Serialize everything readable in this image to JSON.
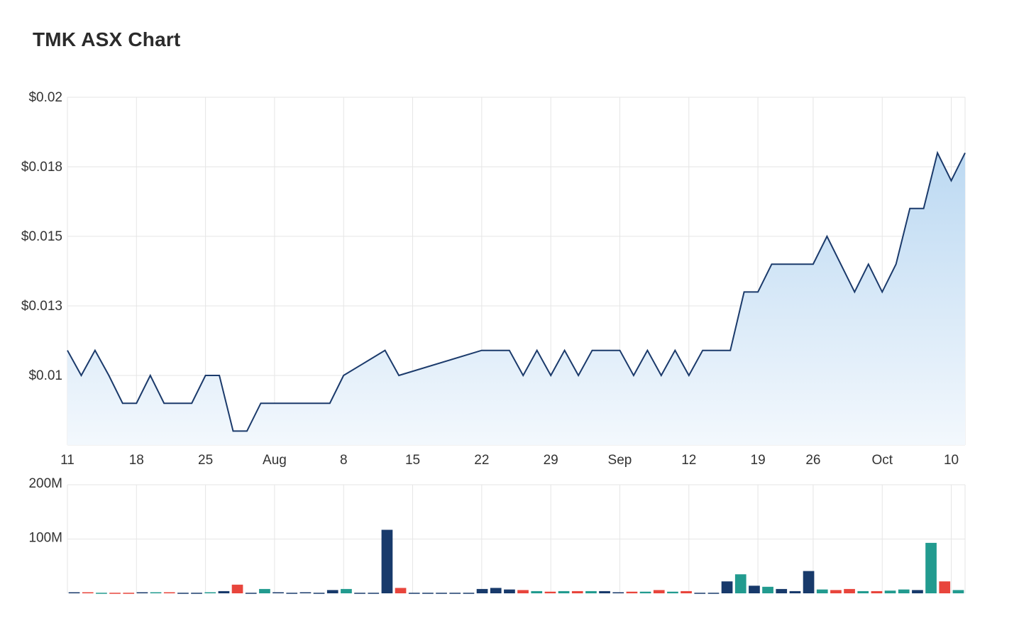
{
  "title": "TMK ASX Chart",
  "colors": {
    "line": "#1b3a6b",
    "area_top": "#bcd9f2",
    "area_bottom": "#f3f8fd",
    "vol_navy": "#183a6b",
    "vol_teal": "#229b8f",
    "vol_red": "#e8453c",
    "grid": "#e6e6e6"
  },
  "chart_data": [
    {
      "type": "area",
      "title": "TMK ASX Chart",
      "ylabel": "",
      "xlabel": "",
      "y_ticks": [
        "$0.02",
        "$0.018",
        "$0.015",
        "$0.013",
        "$0.01"
      ],
      "y_tick_values": [
        0.02,
        0.0175,
        0.015,
        0.0125,
        0.01
      ],
      "ylim": [
        0.0075,
        0.02
      ],
      "x_ticks": [
        "11",
        "18",
        "25",
        "Aug",
        "8",
        "15",
        "22",
        "29",
        "Sep",
        "12",
        "19",
        "26",
        "Oct",
        "10"
      ],
      "x_tick_days": [
        0,
        5,
        10,
        15,
        20,
        25,
        30,
        35,
        40,
        45,
        50,
        54,
        59,
        64
      ],
      "x_day_max": 65,
      "grid": true,
      "series": [
        {
          "points": [
            [
              0,
              0.0109
            ],
            [
              1,
              0.01
            ],
            [
              2,
              0.0109
            ],
            [
              3,
              0.01
            ],
            [
              4,
              0.009
            ],
            [
              5,
              0.009
            ],
            [
              6,
              0.01
            ],
            [
              7,
              0.009
            ],
            [
              8,
              0.009
            ],
            [
              9,
              0.009
            ],
            [
              10,
              0.01
            ],
            [
              11,
              0.01
            ],
            [
              12,
              0.008
            ],
            [
              13,
              0.008
            ],
            [
              14,
              0.009
            ],
            [
              15,
              0.009
            ],
            [
              16,
              0.009
            ],
            [
              17,
              0.009
            ],
            [
              18,
              0.009
            ],
            [
              19,
              0.009
            ],
            [
              20,
              0.01
            ],
            [
              23,
              0.0109
            ],
            [
              24,
              0.01
            ],
            [
              30,
              0.0109
            ],
            [
              31,
              0.0109
            ],
            [
              32,
              0.0109
            ],
            [
              33,
              0.01
            ],
            [
              34,
              0.0109
            ],
            [
              35,
              0.01
            ],
            [
              36,
              0.0109
            ],
            [
              37,
              0.01
            ],
            [
              38,
              0.0109
            ],
            [
              39,
              0.0109
            ],
            [
              40,
              0.0109
            ],
            [
              41,
              0.01
            ],
            [
              42,
              0.0109
            ],
            [
              43,
              0.01
            ],
            [
              44,
              0.0109
            ],
            [
              45,
              0.01
            ],
            [
              46,
              0.0109
            ],
            [
              47,
              0.0109
            ],
            [
              48,
              0.0109
            ],
            [
              49,
              0.013
            ],
            [
              50,
              0.013
            ],
            [
              51,
              0.014
            ],
            [
              54,
              0.014
            ],
            [
              55,
              0.015
            ],
            [
              57,
              0.013
            ],
            [
              58,
              0.014
            ],
            [
              59,
              0.013
            ],
            [
              60,
              0.014
            ],
            [
              61,
              0.016
            ],
            [
              62,
              0.016
            ],
            [
              63,
              0.018
            ],
            [
              64,
              0.017
            ],
            [
              65,
              0.018
            ]
          ]
        }
      ]
    },
    {
      "type": "bar",
      "title": "",
      "y_ticks": [
        "200M",
        "100M"
      ],
      "y_tick_values": [
        200,
        100
      ],
      "ylim": [
        0,
        200
      ],
      "units": "M",
      "grid": true,
      "bars": [
        {
          "day": 0,
          "value": 2,
          "dir": "navy"
        },
        {
          "day": 1,
          "value": 2,
          "dir": "red"
        },
        {
          "day": 2,
          "value": 1,
          "dir": "teal"
        },
        {
          "day": 3,
          "value": 1,
          "dir": "red"
        },
        {
          "day": 4,
          "value": 1,
          "dir": "red"
        },
        {
          "day": 5,
          "value": 2,
          "dir": "navy"
        },
        {
          "day": 6,
          "value": 2,
          "dir": "teal"
        },
        {
          "day": 7,
          "value": 2,
          "dir": "red"
        },
        {
          "day": 8,
          "value": 1,
          "dir": "navy"
        },
        {
          "day": 9,
          "value": 1,
          "dir": "navy"
        },
        {
          "day": 10,
          "value": 2,
          "dir": "teal"
        },
        {
          "day": 11,
          "value": 4,
          "dir": "navy"
        },
        {
          "day": 12,
          "value": 16,
          "dir": "red"
        },
        {
          "day": 13,
          "value": 1,
          "dir": "navy"
        },
        {
          "day": 14,
          "value": 8,
          "dir": "teal"
        },
        {
          "day": 15,
          "value": 2,
          "dir": "navy"
        },
        {
          "day": 16,
          "value": 1,
          "dir": "navy"
        },
        {
          "day": 17,
          "value": 2,
          "dir": "navy"
        },
        {
          "day": 18,
          "value": 1,
          "dir": "navy"
        },
        {
          "day": 19,
          "value": 6,
          "dir": "navy"
        },
        {
          "day": 20,
          "value": 8,
          "dir": "teal"
        },
        {
          "day": 21,
          "value": 1,
          "dir": "navy"
        },
        {
          "day": 22,
          "value": 1,
          "dir": "navy"
        },
        {
          "day": 23,
          "value": 117,
          "dir": "navy"
        },
        {
          "day": 24,
          "value": 10,
          "dir": "red"
        },
        {
          "day": 25,
          "value": 1,
          "dir": "navy"
        },
        {
          "day": 26,
          "value": 1,
          "dir": "navy"
        },
        {
          "day": 27,
          "value": 1,
          "dir": "navy"
        },
        {
          "day": 28,
          "value": 1,
          "dir": "navy"
        },
        {
          "day": 29,
          "value": 1,
          "dir": "navy"
        },
        {
          "day": 30,
          "value": 8,
          "dir": "navy"
        },
        {
          "day": 31,
          "value": 10,
          "dir": "navy"
        },
        {
          "day": 32,
          "value": 7,
          "dir": "navy"
        },
        {
          "day": 33,
          "value": 6,
          "dir": "red"
        },
        {
          "day": 34,
          "value": 4,
          "dir": "teal"
        },
        {
          "day": 35,
          "value": 3,
          "dir": "red"
        },
        {
          "day": 36,
          "value": 4,
          "dir": "teal"
        },
        {
          "day": 37,
          "value": 4,
          "dir": "red"
        },
        {
          "day": 38,
          "value": 4,
          "dir": "teal"
        },
        {
          "day": 39,
          "value": 4,
          "dir": "navy"
        },
        {
          "day": 40,
          "value": 2,
          "dir": "navy"
        },
        {
          "day": 41,
          "value": 3,
          "dir": "red"
        },
        {
          "day": 42,
          "value": 3,
          "dir": "teal"
        },
        {
          "day": 43,
          "value": 6,
          "dir": "red"
        },
        {
          "day": 44,
          "value": 3,
          "dir": "teal"
        },
        {
          "day": 45,
          "value": 4,
          "dir": "red"
        },
        {
          "day": 46,
          "value": 1,
          "dir": "navy"
        },
        {
          "day": 47,
          "value": 1,
          "dir": "navy"
        },
        {
          "day": 48,
          "value": 22,
          "dir": "navy"
        },
        {
          "day": 49,
          "value": 35,
          "dir": "teal"
        },
        {
          "day": 50,
          "value": 14,
          "dir": "navy"
        },
        {
          "day": 51,
          "value": 12,
          "dir": "teal"
        },
        {
          "day": 52,
          "value": 8,
          "dir": "navy"
        },
        {
          "day": 53,
          "value": 4,
          "dir": "navy"
        },
        {
          "day": 54,
          "value": 41,
          "dir": "navy"
        },
        {
          "day": 55,
          "value": 7,
          "dir": "teal"
        },
        {
          "day": 56,
          "value": 6,
          "dir": "red"
        },
        {
          "day": 57,
          "value": 8,
          "dir": "red"
        },
        {
          "day": 58,
          "value": 4,
          "dir": "teal"
        },
        {
          "day": 59,
          "value": 4,
          "dir": "red"
        },
        {
          "day": 60,
          "value": 5,
          "dir": "teal"
        },
        {
          "day": 61,
          "value": 7,
          "dir": "teal"
        },
        {
          "day": 62,
          "value": 6,
          "dir": "navy"
        },
        {
          "day": 63,
          "value": 93,
          "dir": "teal"
        },
        {
          "day": 64,
          "value": 22,
          "dir": "red"
        },
        {
          "day": 65,
          "value": 6,
          "dir": "teal"
        }
      ]
    }
  ]
}
